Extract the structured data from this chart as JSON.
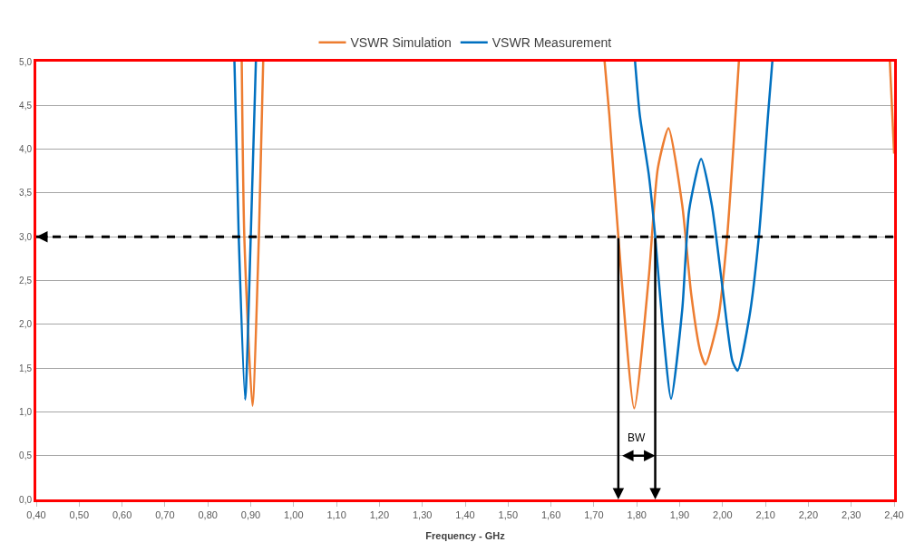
{
  "chart_data": {
    "type": "line",
    "xlabel": "Frequency - GHz",
    "legend": "top",
    "grid": "y",
    "xlim": [
      0.4,
      2.4
    ],
    "ylim": [
      0,
      5
    ],
    "xticks": [
      {
        "value": 0.4,
        "label": "0,40"
      },
      {
        "value": 0.5,
        "label": "0,50"
      },
      {
        "value": 0.6,
        "label": "0,60"
      },
      {
        "value": 0.7,
        "label": "0,70"
      },
      {
        "value": 0.8,
        "label": "0,80"
      },
      {
        "value": 0.9,
        "label": "0,90"
      },
      {
        "value": 1.0,
        "label": "1,00"
      },
      {
        "value": 1.1,
        "label": "1,10"
      },
      {
        "value": 1.2,
        "label": "1,20"
      },
      {
        "value": 1.3,
        "label": "1,30"
      },
      {
        "value": 1.4,
        "label": "1,40"
      },
      {
        "value": 1.5,
        "label": "1,50"
      },
      {
        "value": 1.6,
        "label": "1,60"
      },
      {
        "value": 1.7,
        "label": "1,70"
      },
      {
        "value": 1.8,
        "label": "1,80"
      },
      {
        "value": 1.9,
        "label": "1,90"
      },
      {
        "value": 2.0,
        "label": "2,00"
      },
      {
        "value": 2.1,
        "label": "2,10"
      },
      {
        "value": 2.2,
        "label": "2,20"
      },
      {
        "value": 2.3,
        "label": "2,30"
      },
      {
        "value": 2.4,
        "label": "2,40"
      }
    ],
    "yticks": [
      {
        "value": 0,
        "label": "0,0"
      },
      {
        "value": 0.5,
        "label": "0,5"
      },
      {
        "value": 1,
        "label": "1,0"
      },
      {
        "value": 1.5,
        "label": "1,5"
      },
      {
        "value": 2,
        "label": "2,0"
      },
      {
        "value": 2.5,
        "label": "2,5"
      },
      {
        "value": 3,
        "label": "3,0"
      },
      {
        "value": 3.5,
        "label": "3,5"
      },
      {
        "value": 4,
        "label": "4,0"
      },
      {
        "value": 4.5,
        "label": "4,5"
      },
      {
        "value": 5,
        "label": "5,0"
      }
    ],
    "series": [
      {
        "name": "VSWR Simulation",
        "color": "#ed7d31",
        "x": [
          0.879,
          0.885,
          0.904,
          0.919,
          0.929,
          null,
          1.725,
          1.736,
          1.757,
          1.794,
          1.828,
          1.849,
          1.874,
          1.906,
          1.927,
          1.948,
          1.96,
          1.99,
          2.011,
          2.028,
          2.038,
          null,
          2.39,
          2.4
        ],
        "values": [
          5,
          3.0,
          1.07,
          3.0,
          5,
          null,
          5,
          4.39,
          3.0,
          1.04,
          2.54,
          3.78,
          4.24,
          3.36,
          2.34,
          1.69,
          1.54,
          2.07,
          3.02,
          4.23,
          5,
          null,
          5,
          3.95
        ]
      },
      {
        "name": "VSWR Measurement",
        "color": "#0070c0",
        "x": [
          0.862,
          0.872,
          0.887,
          0.9,
          0.912,
          null,
          1.796,
          1.807,
          1.828,
          1.843,
          1.86,
          1.88,
          1.906,
          1.922,
          1.95,
          1.975,
          2.0,
          2.023,
          2.035,
          2.062,
          2.085,
          2.106,
          2.116
        ],
        "values": [
          5,
          3.0,
          1.14,
          3.0,
          5,
          null,
          5,
          4.39,
          3.71,
          3.0,
          2.0,
          1.15,
          2.17,
          3.3,
          3.89,
          3.36,
          2.41,
          1.58,
          1.47,
          2.07,
          3.02,
          4.39,
          5
        ]
      }
    ],
    "ref_lines": [
      {
        "axis": "y",
        "value": 3,
        "color": "#000000",
        "line_style": "dashed"
      },
      {
        "axis": "x",
        "value": 1.757,
        "color": "#000000"
      },
      {
        "axis": "x",
        "value": 1.843,
        "color": "#000000"
      }
    ],
    "annotations": [
      "BW"
    ]
  }
}
